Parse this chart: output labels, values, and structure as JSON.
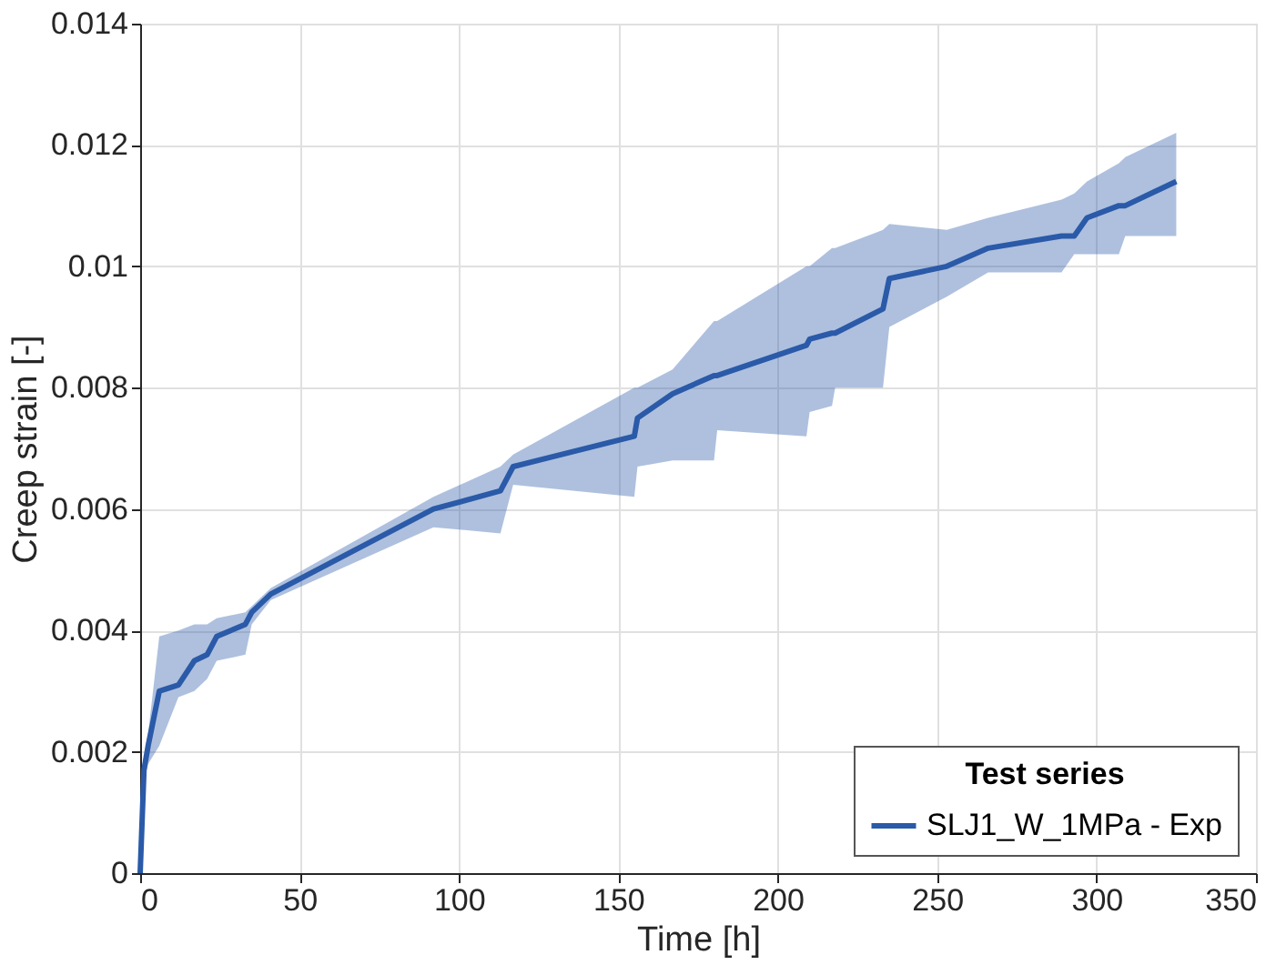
{
  "chart_data": {
    "type": "line",
    "xlabel": "Time [h]",
    "ylabel": "Creep strain [-]",
    "legend_title": "Test series",
    "legend": "bottom right",
    "grid": true,
    "marker": "none",
    "line_style": "solid",
    "xlim": [
      0,
      350
    ],
    "xticks": [
      0,
      50,
      100,
      150,
      200,
      250,
      300,
      350
    ],
    "ylim": [
      0,
      0.014
    ],
    "yticks": [
      0,
      0.002,
      0.004,
      0.006,
      0.008,
      0.01,
      0.012,
      0.014
    ],
    "x": [
      0,
      1.2,
      2.5,
      6,
      12,
      17,
      21,
      24,
      33,
      35,
      41,
      92,
      113,
      117,
      155,
      156,
      167,
      180,
      181,
      209,
      210,
      217,
      218,
      233,
      235,
      253,
      266,
      289,
      293,
      297,
      307,
      309,
      325
    ],
    "series": [
      {
        "name": "SLJ1_W_1MPa - Exp",
        "color": "#2a5aa8",
        "values": [
          0,
          0.0017,
          0.0021,
          0.003,
          0.0031,
          0.0035,
          0.0036,
          0.0039,
          0.0041,
          0.0043,
          0.0046,
          0.006,
          0.0063,
          0.0067,
          0.0072,
          0.0075,
          0.0079,
          0.0082,
          0.0082,
          0.0087,
          0.0088,
          0.0089,
          0.0089,
          0.0093,
          0.0098,
          0.01,
          0.0103,
          0.0105,
          0.0105,
          0.0108,
          0.011,
          0.011,
          0.0114
        ],
        "lower": [
          0,
          0.0015,
          0.0018,
          0.0021,
          0.0029,
          0.003,
          0.0032,
          0.0035,
          0.0036,
          0.0041,
          0.0045,
          0.0057,
          0.0056,
          0.0064,
          0.0062,
          0.0067,
          0.0068,
          0.0068,
          0.0073,
          0.0072,
          0.0076,
          0.0077,
          0.008,
          0.008,
          0.009,
          0.0095,
          0.0099,
          0.0099,
          0.0102,
          0.0102,
          0.0102,
          0.0105,
          0.0105
        ],
        "upper": [
          0,
          0.0019,
          0.0023,
          0.0039,
          0.004,
          0.0041,
          0.0041,
          0.0042,
          0.0043,
          0.0044,
          0.0047,
          0.0062,
          0.0067,
          0.0069,
          0.008,
          0.008,
          0.0083,
          0.0091,
          0.0091,
          0.01,
          0.01,
          0.0103,
          0.0103,
          0.0106,
          0.0107,
          0.0106,
          0.0108,
          0.0111,
          0.0112,
          0.0114,
          0.0117,
          0.0118,
          0.0122
        ]
      }
    ]
  }
}
